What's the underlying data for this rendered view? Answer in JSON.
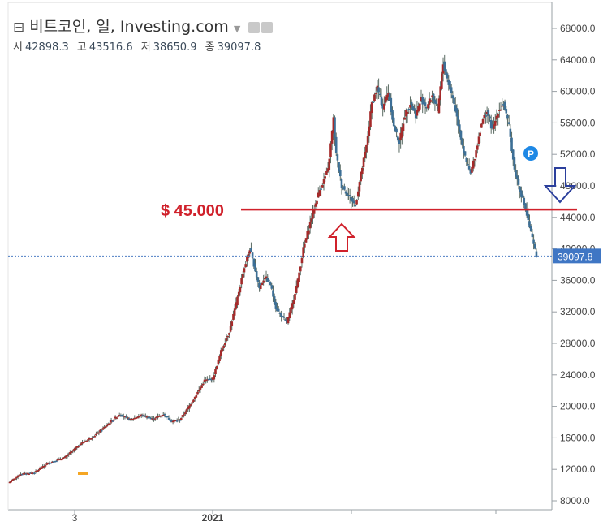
{
  "header": {
    "title": "비트코인, 일, Investing.com",
    "dropdown_icon": "chevron-down-icon",
    "settings_icons": [
      "gear-icon",
      "gear-icon"
    ]
  },
  "ohlc": {
    "open_label": "시",
    "open": "42898.3",
    "high_label": "고",
    "high": "43516.6",
    "low_label": "저",
    "low": "38650.9",
    "close_label": "종",
    "close": "39097.8"
  },
  "annotation": {
    "text": "$ 45.000",
    "level": 45000,
    "color": "#d0212b"
  },
  "colors": {
    "up": "#a52a2a",
    "down": "#3d6f96",
    "wick": "#5a6b63",
    "current_badge": "#3f76c4"
  },
  "chart_data": {
    "type": "candlestick",
    "title": "비트코인, 일, Investing.com",
    "y_ticks": [
      "8000.0",
      "12000.0",
      "16000.0",
      "20000.0",
      "24000.0",
      "28000.0",
      "32000.0",
      "36000.0",
      "40000.0",
      "44000.0",
      "48000.0",
      "52000.0",
      "56000.0",
      "60000.0",
      "64000.0",
      "68000.0"
    ],
    "x_tick_labels": [
      "3",
      "2021"
    ],
    "ylim": [
      7000,
      70000
    ],
    "current_price": "39097.8",
    "marker": "P",
    "path_close": [
      [
        0,
        10400
      ],
      [
        8,
        11400
      ],
      [
        18,
        11600
      ],
      [
        28,
        12800
      ],
      [
        40,
        13500
      ],
      [
        52,
        15300
      ],
      [
        62,
        16300
      ],
      [
        72,
        17800
      ],
      [
        80,
        19000
      ],
      [
        88,
        18300
      ],
      [
        96,
        18900
      ],
      [
        104,
        18400
      ],
      [
        112,
        19000
      ],
      [
        118,
        18100
      ],
      [
        124,
        18300
      ],
      [
        130,
        19800
      ],
      [
        136,
        21500
      ],
      [
        142,
        23300
      ],
      [
        148,
        23500
      ],
      [
        154,
        27000
      ],
      [
        160,
        29500
      ],
      [
        165,
        33000
      ],
      [
        170,
        37000
      ],
      [
        175,
        40000
      ],
      [
        178,
        38000
      ],
      [
        182,
        35000
      ],
      [
        186,
        36500
      ],
      [
        190,
        35500
      ],
      [
        194,
        32500
      ],
      [
        198,
        31500
      ],
      [
        202,
        30600
      ],
      [
        206,
        33000
      ],
      [
        210,
        36000
      ],
      [
        214,
        40000
      ],
      [
        220,
        44000
      ],
      [
        226,
        47500
      ],
      [
        232,
        50000
      ],
      [
        236,
        56500
      ],
      [
        238,
        52000
      ],
      [
        242,
        48000
      ],
      [
        246,
        47000
      ],
      [
        250,
        46000
      ],
      [
        252,
        45500
      ],
      [
        256,
        49500
      ],
      [
        260,
        53000
      ],
      [
        264,
        58500
      ],
      [
        268,
        60500
      ],
      [
        272,
        58000
      ],
      [
        276,
        60000
      ],
      [
        280,
        55500
      ],
      [
        284,
        53500
      ],
      [
        288,
        57000
      ],
      [
        292,
        58500
      ],
      [
        296,
        57000
      ],
      [
        300,
        59000
      ],
      [
        304,
        58000
      ],
      [
        308,
        59500
      ],
      [
        312,
        57500
      ],
      [
        316,
        63500
      ],
      [
        320,
        61000
      ],
      [
        324,
        58500
      ],
      [
        328,
        55000
      ],
      [
        332,
        51500
      ],
      [
        336,
        49500
      ],
      [
        340,
        52500
      ],
      [
        344,
        56000
      ],
      [
        348,
        57500
      ],
      [
        352,
        55000
      ],
      [
        356,
        57500
      ],
      [
        360,
        58500
      ],
      [
        364,
        55500
      ],
      [
        368,
        50000
      ],
      [
        372,
        47500
      ],
      [
        376,
        45000
      ],
      [
        380,
        42000
      ],
      [
        384,
        39097.8
      ]
    ]
  }
}
